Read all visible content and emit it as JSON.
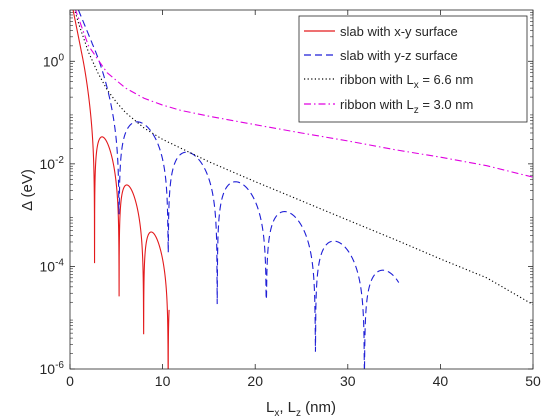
{
  "chart_data": {
    "type": "line",
    "title": "",
    "xlabel": "L_x, L_z (nm)",
    "ylabel": "Δ (eV)",
    "xlim": [
      0,
      50
    ],
    "ylim": [
      1e-06,
      10
    ],
    "yscale": "log",
    "grid": false,
    "legend_position": "top-right",
    "x_ticks": [
      0,
      10,
      20,
      30,
      40,
      50
    ],
    "y_ticks": [
      {
        "value": 1e-06,
        "base": "10",
        "exp": "-6"
      },
      {
        "value": 0.0001,
        "base": "10",
        "exp": "-4"
      },
      {
        "value": 0.01,
        "base": "10",
        "exp": "-2"
      },
      {
        "value": 1,
        "base": "10",
        "exp": "0"
      }
    ],
    "series": [
      {
        "name": "slab with x-y surface",
        "color": "#e31a1c",
        "dash": "solid",
        "kind": "oscillating",
        "x0": 0,
        "x1": 10.7,
        "period": 2.65,
        "phase": 2.65,
        "envelope": [
          [
            0,
            20
          ],
          [
            2.65,
            0.08
          ],
          [
            5.3,
            0.009
          ],
          [
            7.95,
            0.0011
          ],
          [
            10.6,
            0.00013
          ],
          [
            13.25,
            1.6e-05
          ]
        ]
      },
      {
        "name": "slab with y-z surface",
        "color": "#1f1fd6",
        "dash": "dashed",
        "kind": "oscillating",
        "x0": 0,
        "x1": 35.5,
        "period": 5.3,
        "phase": 5.3,
        "envelope": [
          [
            0,
            25
          ],
          [
            5.3,
            0.12
          ],
          [
            10.6,
            0.03
          ],
          [
            15.9,
            0.008
          ],
          [
            21.2,
            0.0021
          ],
          [
            26.5,
            0.00055
          ],
          [
            31.8,
            0.00015
          ],
          [
            37.1,
            4e-05
          ]
        ]
      },
      {
        "name": "ribbon with L_x = 6.6 nm",
        "color": "#000000",
        "dash": "dotted",
        "kind": "smooth",
        "points": [
          [
            0,
            20
          ],
          [
            1,
            5
          ],
          [
            2,
            1.5
          ],
          [
            3,
            0.6
          ],
          [
            4,
            0.28
          ],
          [
            5,
            0.16
          ],
          [
            6,
            0.1
          ],
          [
            8,
            0.05
          ],
          [
            10,
            0.03
          ],
          [
            15,
            0.011
          ],
          [
            20,
            0.0045
          ],
          [
            25,
            0.0019
          ],
          [
            30,
            0.0008
          ],
          [
            35,
            0.00034
          ],
          [
            40,
            0.00014
          ],
          [
            45,
            6e-05
          ],
          [
            50,
            1.8e-05
          ]
        ]
      },
      {
        "name": "ribbon with L_z = 3.0 nm",
        "color": "#e000e0",
        "dash": "dashdot",
        "kind": "smooth",
        "points": [
          [
            0,
            20
          ],
          [
            2,
            2
          ],
          [
            4,
            0.6
          ],
          [
            6,
            0.3
          ],
          [
            8,
            0.19
          ],
          [
            10,
            0.14
          ],
          [
            12,
            0.11
          ],
          [
            15,
            0.085
          ],
          [
            20,
            0.058
          ],
          [
            25,
            0.04
          ],
          [
            30,
            0.028
          ],
          [
            35,
            0.019
          ],
          [
            40,
            0.0135
          ],
          [
            45,
            0.0092
          ],
          [
            50,
            0.0055
          ]
        ]
      }
    ]
  },
  "legend": {
    "entries": [
      {
        "prefix": "slab with x-y surface",
        "sub": "",
        "suffix": ""
      },
      {
        "prefix": "slab with y-z surface",
        "sub": "",
        "suffix": ""
      },
      {
        "prefix": "ribbon with L",
        "sub": "x",
        "suffix": " = 6.6 nm"
      },
      {
        "prefix": "ribbon with L",
        "sub": "z",
        "suffix": " = 3.0 nm"
      }
    ]
  },
  "axes": {
    "x_label": {
      "p1": "L",
      "s1": "x",
      "p2": ", L",
      "s2": "z",
      "p3": " (nm)"
    },
    "y_label": "Δ (eV)"
  }
}
